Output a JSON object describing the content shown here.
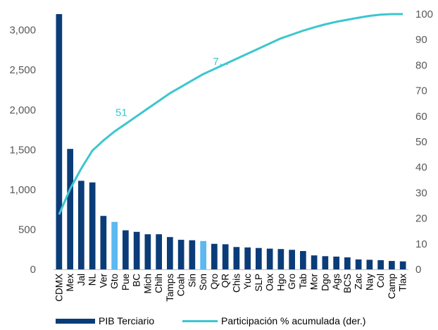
{
  "chart_data": {
    "type": "bar+line",
    "categories": [
      "CDMX",
      "Mex",
      "Jal",
      "NL",
      "Ver",
      "Gto",
      "Pue",
      "BC",
      "Mich",
      "Chih",
      "Tamps",
      "Coah",
      "Sin",
      "Son",
      "Qro",
      "QR",
      "Chis",
      "Yuc",
      "SLP",
      "Oax",
      "Hgo",
      "Gro",
      "Tab",
      "Mor",
      "Dgo",
      "Ags",
      "BCS",
      "Zac",
      "Nay",
      "Col",
      "Camp",
      "Tlax"
    ],
    "series": [
      {
        "name": "PIB Terciario",
        "kind": "bar",
        "axis": "left",
        "values": [
          3200,
          1510,
          1110,
          1090,
          670,
          595,
          490,
          470,
          440,
          440,
          405,
          370,
          365,
          355,
          320,
          315,
          280,
          275,
          268,
          260,
          255,
          245,
          230,
          175,
          165,
          160,
          150,
          125,
          120,
          115,
          105,
          100
        ]
      },
      {
        "name": "Participación % acumulada (der.)",
        "kind": "line",
        "axis": "right",
        "values": [
          21.5,
          31.5,
          39.5,
          46.5,
          50.5,
          54,
          57,
          60,
          63,
          66,
          69,
          71.5,
          74,
          76.5,
          78.5,
          80.5,
          82.5,
          84.5,
          86.5,
          88.5,
          90.5,
          92,
          93.5,
          94.8,
          96,
          97,
          97.8,
          98.6,
          99.3,
          99.8,
          100,
          100
        ]
      }
    ],
    "highlight_categories": [
      "Gto",
      "Son"
    ],
    "y_left": {
      "ylim": [
        0,
        3200
      ],
      "ticks": [
        "0",
        "500",
        "1,000",
        "1,500",
        "2,000",
        "2,500",
        "3,000"
      ]
    },
    "y_right": {
      "ylim": [
        0,
        100
      ],
      "ticks": [
        "0",
        "10",
        "20",
        "30",
        "40",
        "50",
        "60",
        "70",
        "80",
        "90",
        "100"
      ]
    },
    "annotations": [
      {
        "text": "51",
        "x_category": "Pue",
        "y_right": 61.5
      },
      {
        "text": "7…",
        "x_category": "QR",
        "y_right": 81.5
      }
    ],
    "grid": false,
    "legend_position": "bottom",
    "colors": {
      "bar": "#0B3C78",
      "bar_highlight": "#5BB8F0",
      "line": "#3CC6CF",
      "tick_text": "#595959",
      "axis": "#BFBFBF"
    }
  }
}
